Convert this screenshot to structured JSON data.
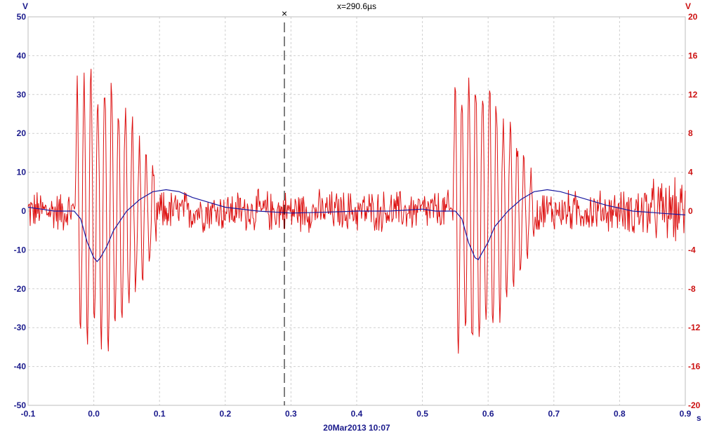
{
  "chart_data": {
    "type": "line",
    "x_unit": "s",
    "y_left_unit": "V",
    "y_right_unit": "V",
    "xlim": [
      -0.1,
      0.9
    ],
    "ylim_left": [
      -50,
      50
    ],
    "ylim_right": [
      -20,
      20
    ],
    "x_ticks": [
      "-0.1",
      "0.0",
      "0.1",
      "0.2",
      "0.3",
      "0.4",
      "0.5",
      "0.6",
      "0.7",
      "0.8",
      "0.9"
    ],
    "y_left_ticks": [
      "-50",
      "-40",
      "-30",
      "-20",
      "-10",
      "0",
      "10",
      "20",
      "30",
      "40",
      "50"
    ],
    "y_right_ticks": [
      "-20",
      "-16",
      "-12",
      "-8",
      "-4",
      "0",
      "4",
      "8",
      "12",
      "16",
      "20"
    ],
    "grid": true,
    "cursor_x": 0.29,
    "cursor_label": "x=290.6µs",
    "timestamp": "20Mar2013  10:07",
    "series": [
      {
        "axis": "left",
        "color": "#1a1aa0",
        "x": [
          -0.1,
          -0.08,
          -0.06,
          -0.04,
          -0.03,
          -0.02,
          -0.01,
          0.0,
          0.005,
          0.01,
          0.02,
          0.03,
          0.05,
          0.07,
          0.09,
          0.11,
          0.13,
          0.15,
          0.18,
          0.2,
          0.25,
          0.3,
          0.35,
          0.4,
          0.45,
          0.5,
          0.52,
          0.54,
          0.55,
          0.56,
          0.57,
          0.58,
          0.585,
          0.59,
          0.6,
          0.61,
          0.63,
          0.65,
          0.67,
          0.69,
          0.71,
          0.74,
          0.78,
          0.82,
          0.86,
          0.9
        ],
        "y": [
          1,
          0.5,
          0,
          0,
          0,
          -2,
          -8,
          -12,
          -13,
          -12,
          -9,
          -5,
          0,
          3,
          5,
          5.5,
          5,
          3.5,
          2,
          1,
          0,
          -0.5,
          -0.3,
          0,
          0,
          0.5,
          0,
          0,
          0,
          -2,
          -8,
          -12,
          -12.5,
          -11,
          -8,
          -4,
          0,
          3,
          5,
          5.5,
          5,
          3.5,
          1.5,
          0,
          -0.5,
          -1
        ]
      },
      {
        "axis": "right",
        "color": "#dd1111",
        "bursts": [
          {
            "start": -0.028,
            "end": 0.095,
            "peak": 15,
            "period": 0.0105
          },
          {
            "start": 0.547,
            "end": 0.67,
            "peak": 15,
            "period": 0.0105
          }
        ],
        "noise_amplitude": 2.5,
        "noise_samples": 950
      }
    ]
  }
}
